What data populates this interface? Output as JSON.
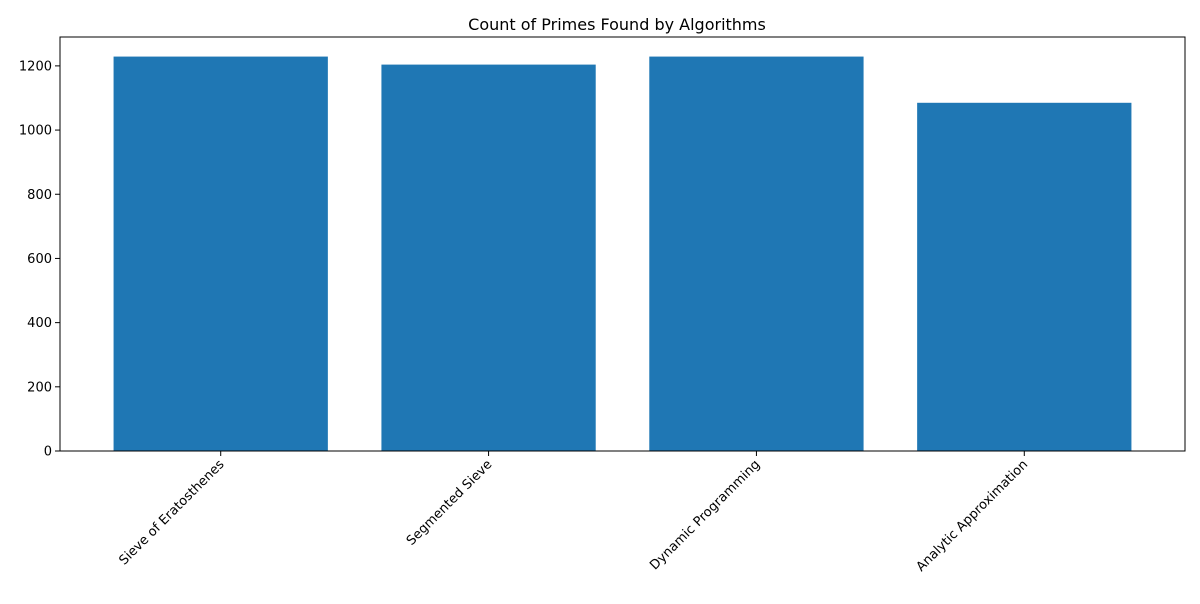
{
  "chart_data": {
    "type": "bar",
    "title": "Count of Primes Found by Algorithms",
    "xlabel": "",
    "ylabel": "",
    "categories": [
      "Sieve of Eratosthenes",
      "Segmented Sieve",
      "Dynamic Programming",
      "Analytic Approximation"
    ],
    "values": [
      1229,
      1204,
      1229,
      1085
    ],
    "ylim": [
      0,
      1290
    ],
    "yticks": [
      0,
      200,
      400,
      600,
      800,
      1000,
      1200
    ],
    "grid": false,
    "legend": "none",
    "bar_color": "#1f77b4"
  }
}
